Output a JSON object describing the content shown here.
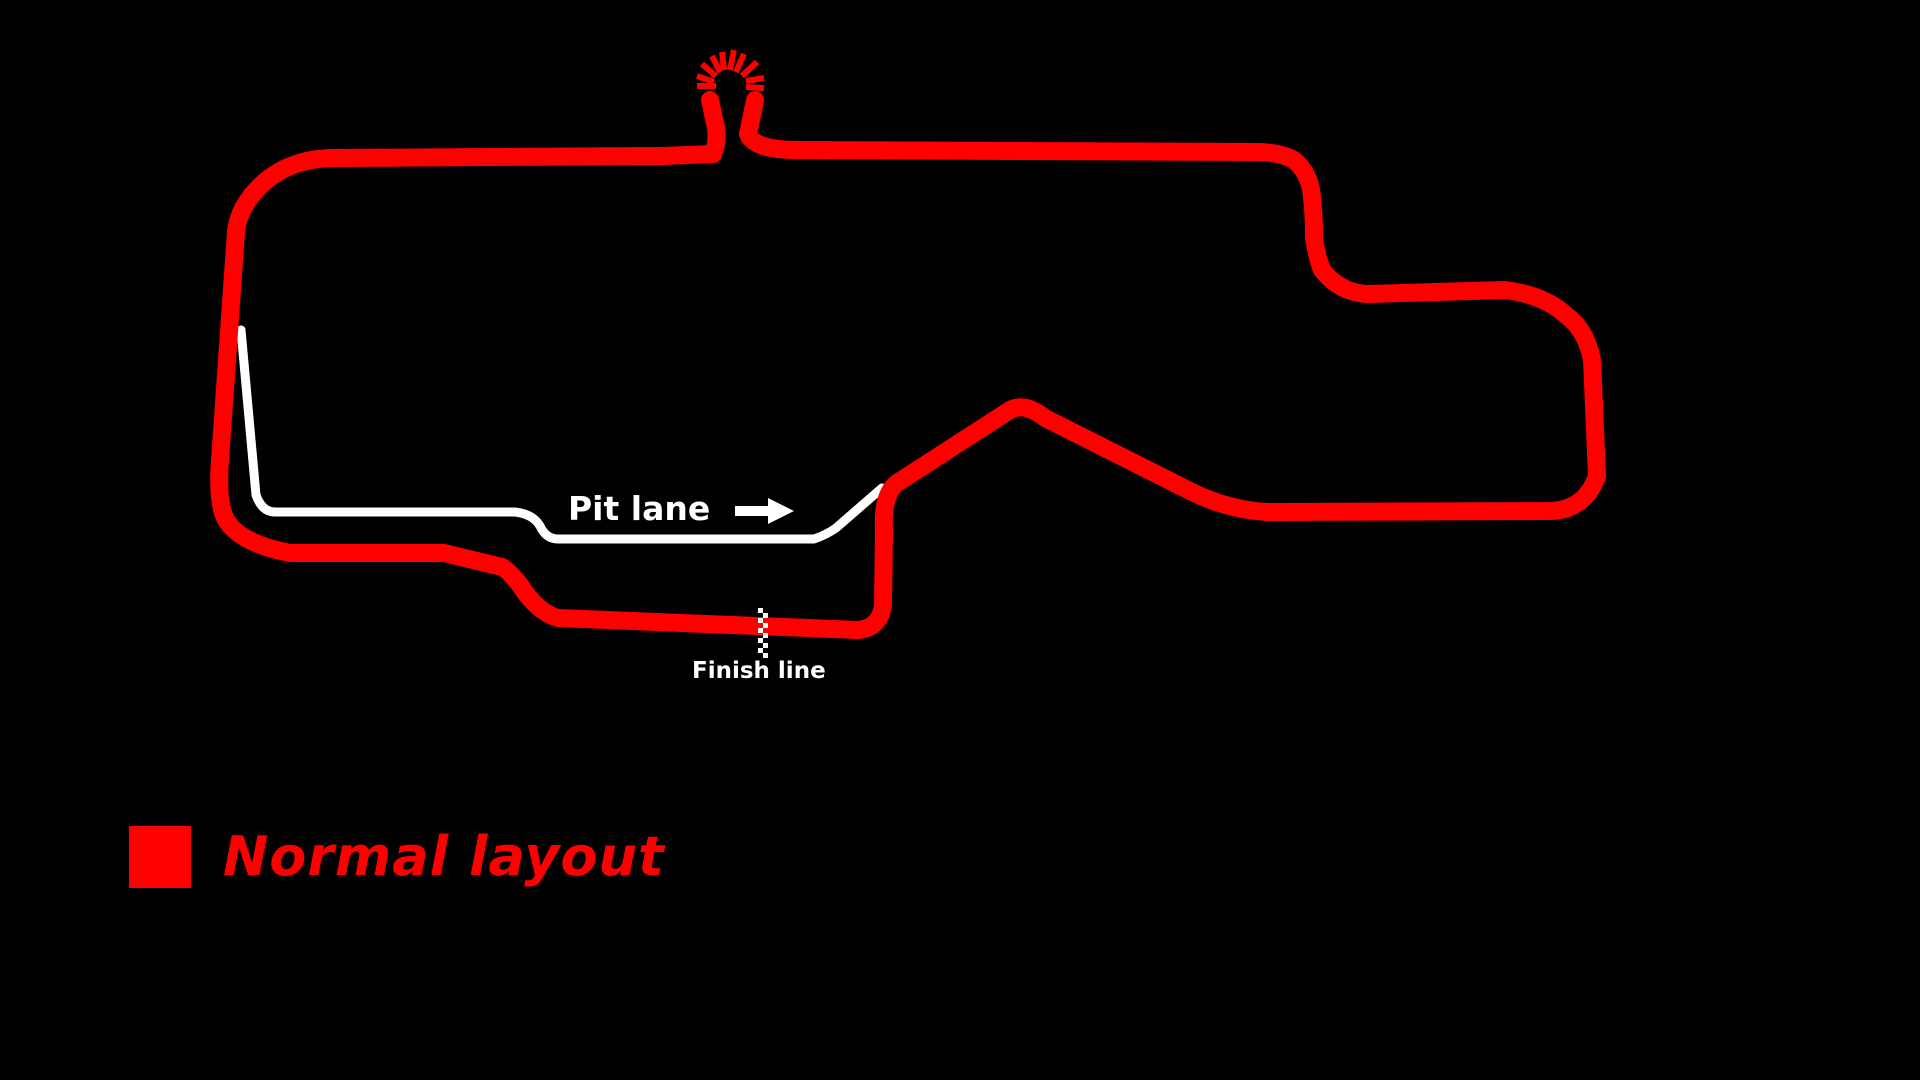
{
  "map": {
    "labels": {
      "pit_lane": "Pit lane",
      "finish_line": "Finish line"
    },
    "legend": {
      "items": [
        {
          "label": "Normal layout",
          "color": "#ff0000"
        }
      ]
    },
    "colors": {
      "background": "#000000",
      "track": "#ff0000",
      "pit_lane": "#ffffff",
      "text": "#ffffff"
    },
    "icons": {
      "pit_arrow": "right-arrow-icon",
      "finish_flag": "checkered-line-icon",
      "hairpin_marker": "corner-marker-icon"
    }
  }
}
